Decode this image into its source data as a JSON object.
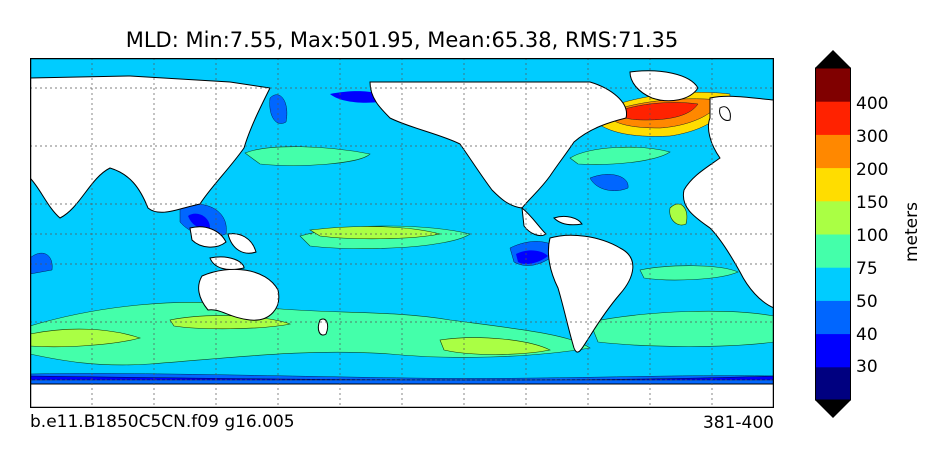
{
  "title": "MLD: Min:7.55, Max:501.95, Mean:65.38, RMS:71.35",
  "footer": {
    "case": "b.e11.B1850C5CN.f09 g16.005",
    "years": "381-400"
  },
  "colorbar": {
    "label": "meters",
    "ticks": [
      "400",
      "300",
      "200",
      "150",
      "100",
      "75",
      "50",
      "40",
      "30"
    ],
    "colors": [
      "#000080",
      "#0000ff",
      "#0066ff",
      "#00ccff",
      "#44ffaa",
      "#aaff44",
      "#ffdd00",
      "#ff8800",
      "#ff2200",
      "#800000"
    ],
    "under_color": "#000000",
    "over_color": "#000000"
  },
  "map": {
    "projection": "cylindrical global, ocean mixed layer depth",
    "land_color": "#ffffff",
    "grid": "dotted"
  }
}
